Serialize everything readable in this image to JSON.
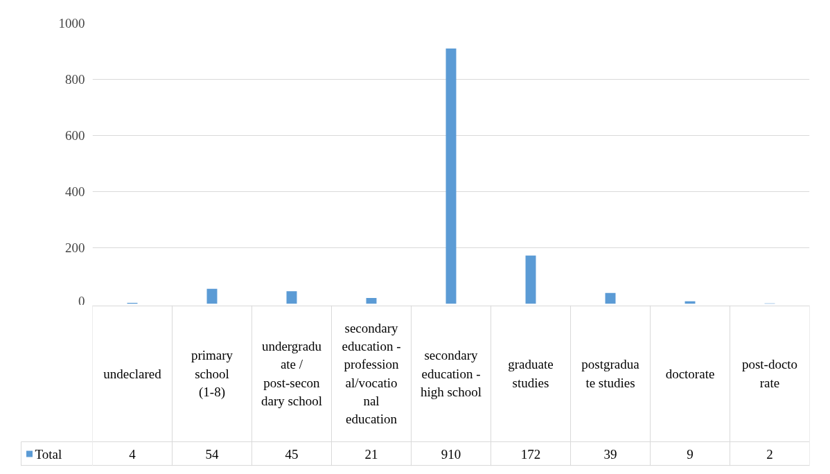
{
  "chart_data": {
    "type": "bar",
    "categories": [
      "undeclared",
      "primary school (1-8)",
      "undergraduate / post-secondary school",
      "secondary education - professional/vocational education",
      "secondary education - high school",
      "graduate studies",
      "postgraduate studies",
      "doctorate",
      "post-doctorate"
    ],
    "series": [
      {
        "name": "Total",
        "color": "#5b9bd5",
        "values": [
          4,
          54,
          45,
          21,
          910,
          172,
          39,
          9,
          2
        ]
      }
    ],
    "ylim": [
      0,
      1000
    ],
    "yticks": [
      0,
      200,
      400,
      600,
      800,
      1000
    ],
    "grid": "y",
    "legend": "bottom",
    "data_labels": true,
    "tick_labels": "y"
  }
}
